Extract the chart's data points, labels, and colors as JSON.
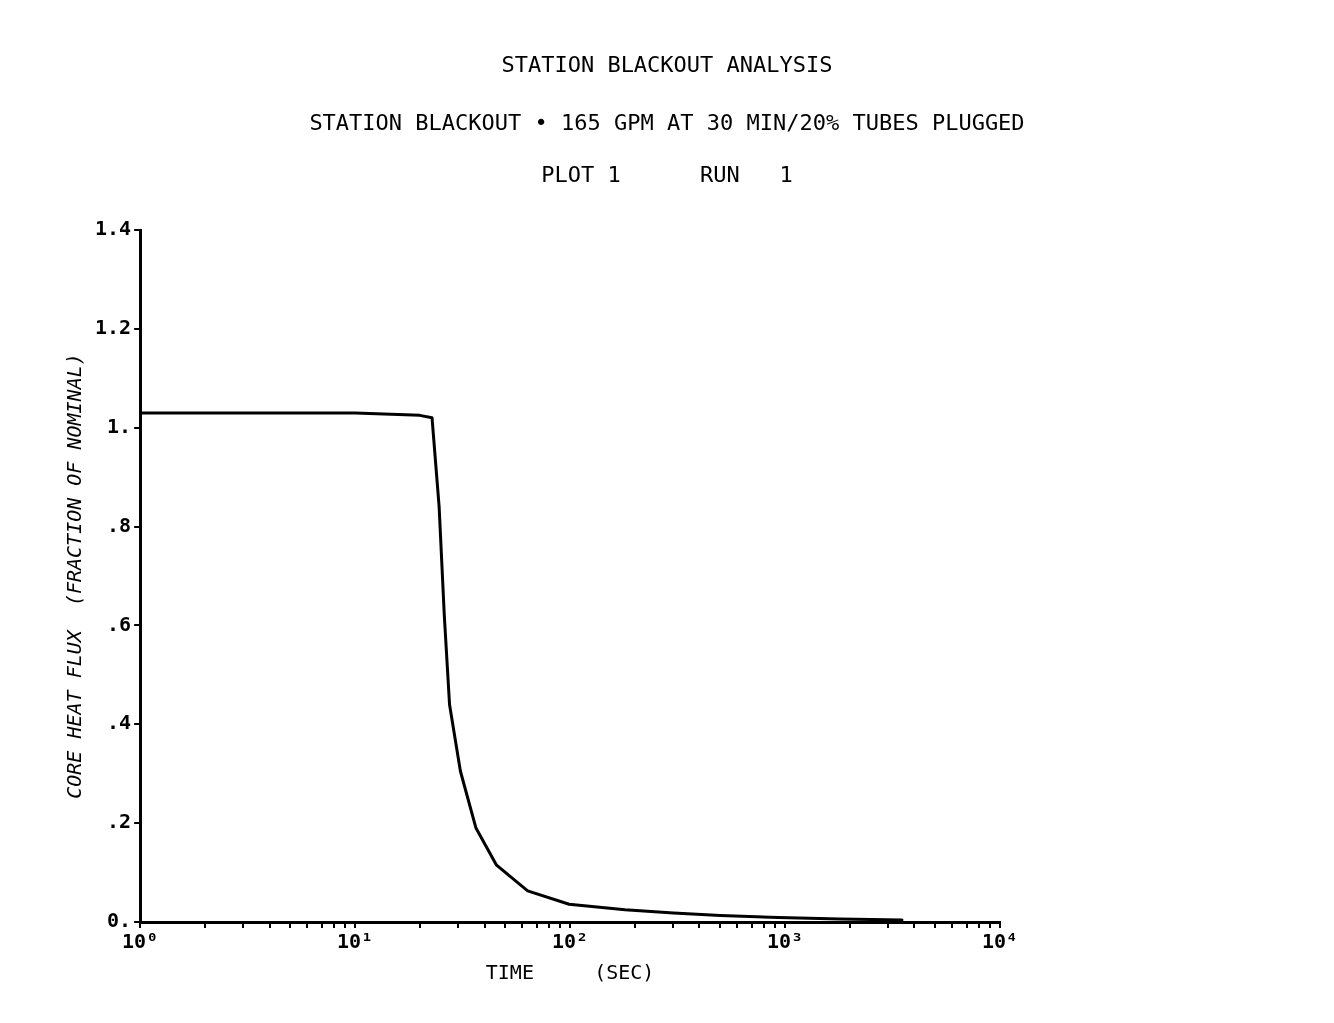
{
  "chart_data": {
    "type": "line",
    "title": "STATION BLACKOUT ANALYSIS",
    "subtitle": "STATION BLACKOUT • 165 GPM AT 30 MIN/20% TUBES PLUGGED",
    "annotations": [
      "PLOT 1      RUN   1"
    ],
    "xlabel": "TIME     (SEC)",
    "ylabel": "CORE HEAT FLUX  (FRACTION OF NOMINAL)",
    "log": "x",
    "grid": false,
    "legend": false,
    "marker": "none",
    "line_style": "solid",
    "x": [
      1,
      5,
      10,
      20,
      22.8,
      24.6,
      26,
      27.5,
      30.9,
      36.5,
      45.5,
      63.5,
      99,
      180,
      303,
      500,
      930,
      1800,
      3500
    ],
    "series": [
      {
        "color": "#000000",
        "values": [
          1.03,
          1.03,
          1.03,
          1.025,
          1.02,
          0.84,
          0.62,
          0.44,
          0.305,
          0.19,
          0.115,
          0.063,
          0.036,
          0.025,
          0.018,
          0.013,
          0.009,
          0.006,
          0.004
        ]
      }
    ],
    "xlim": [
      1,
      10000
    ],
    "xticks": [
      {
        "value": 1,
        "label": "10⁰"
      },
      {
        "value": 2,
        "label": null
      },
      {
        "value": 3,
        "label": null
      },
      {
        "value": 4,
        "label": null
      },
      {
        "value": 5,
        "label": null
      },
      {
        "value": 6,
        "label": null
      },
      {
        "value": 7,
        "label": null
      },
      {
        "value": 8,
        "label": null
      },
      {
        "value": 9,
        "label": null
      },
      {
        "value": 10,
        "label": "10¹"
      },
      {
        "value": 20,
        "label": null
      },
      {
        "value": 30,
        "label": null
      },
      {
        "value": 40,
        "label": null
      },
      {
        "value": 50,
        "label": null
      },
      {
        "value": 60,
        "label": null
      },
      {
        "value": 70,
        "label": null
      },
      {
        "value": 80,
        "label": null
      },
      {
        "value": 90,
        "label": null
      },
      {
        "value": 100,
        "label": "10²"
      },
      {
        "value": 200,
        "label": null
      },
      {
        "value": 300,
        "label": null
      },
      {
        "value": 400,
        "label": null
      },
      {
        "value": 500,
        "label": null
      },
      {
        "value": 600,
        "label": null
      },
      {
        "value": 700,
        "label": null
      },
      {
        "value": 800,
        "label": null
      },
      {
        "value": 900,
        "label": null
      },
      {
        "value": 1000,
        "label": "10³"
      },
      {
        "value": 2000,
        "label": null
      },
      {
        "value": 3000,
        "label": null
      },
      {
        "value": 4000,
        "label": null
      },
      {
        "value": 5000,
        "label": null
      },
      {
        "value": 6000,
        "label": null
      },
      {
        "value": 7000,
        "label": null
      },
      {
        "value": 8000,
        "label": null
      },
      {
        "value": 9000,
        "label": null
      },
      {
        "value": 10000,
        "label": "10⁴"
      }
    ],
    "ylim": [
      0,
      1.4
    ],
    "yticks": [
      {
        "value": 0,
        "label": "0."
      },
      {
        "value": 0.2,
        "label": ".2"
      },
      {
        "value": 0.4,
        "label": ".4"
      },
      {
        "value": 0.6,
        "label": ".6"
      },
      {
        "value": 0.8,
        "label": ".8"
      },
      {
        "value": 1,
        "label": "1."
      },
      {
        "value": 1.2,
        "label": "1.2"
      },
      {
        "value": 1.4,
        "label": "1.4"
      }
    ]
  }
}
